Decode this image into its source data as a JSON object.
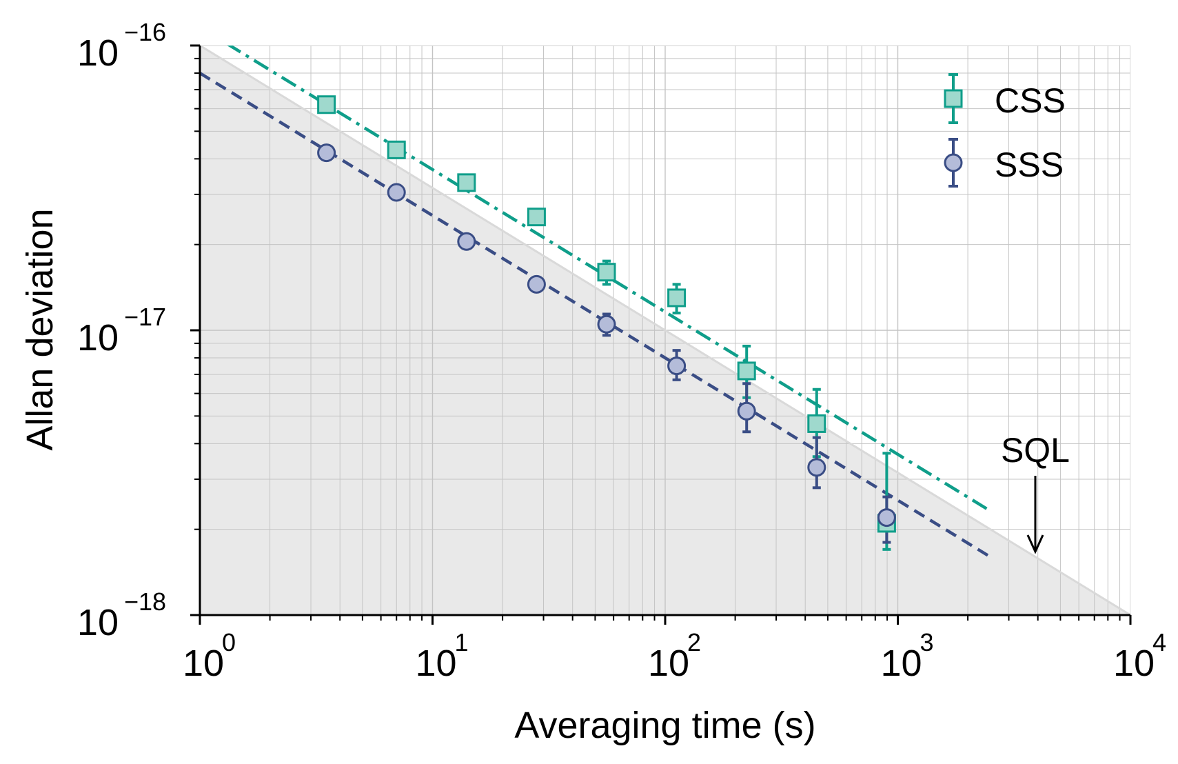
{
  "colors": {
    "css_line": "#0f9e8a",
    "css_fill": "#9fd9cd",
    "sss_line": "#3a4d85",
    "sss_fill": "#b4bcd9",
    "sql_region": "#e9e9e9",
    "sql_line": "#d9d9d9",
    "grid": "#c4c4c4"
  },
  "chart_data": {
    "type": "scatter",
    "xscale": "log",
    "yscale": "log",
    "xlabel": "Averaging time (s)",
    "ylabel": "Allan deviation",
    "xlim": [
      1,
      10000
    ],
    "ylim": [
      1e-18,
      1e-16
    ],
    "grid": "major and minor",
    "legend_position": "top-right",
    "x_ticks": [
      {
        "value": 1,
        "base": "10",
        "exp": "0"
      },
      {
        "value": 10,
        "base": "10",
        "exp": "1"
      },
      {
        "value": 100,
        "base": "10",
        "exp": "2"
      },
      {
        "value": 1000,
        "base": "10",
        "exp": "3"
      },
      {
        "value": 10000,
        "base": "10",
        "exp": "4"
      }
    ],
    "y_ticks": [
      {
        "value": 1e-16,
        "base": "10",
        "exp": "−16"
      },
      {
        "value": 1e-17,
        "base": "10",
        "exp": "−17"
      },
      {
        "value": 1e-18,
        "base": "10",
        "exp": "−18"
      }
    ],
    "series": [
      {
        "name": "CSS",
        "marker": "square",
        "x": [
          3.5,
          7,
          14,
          28,
          56,
          112,
          224,
          448,
          896
        ],
        "y": [
          6.2e-17,
          4.3e-17,
          3.3e-17,
          2.5e-17,
          1.6e-17,
          1.3e-17,
          7.2e-18,
          4.7e-18,
          2.1e-18
        ],
        "y_low": [
          5.9e-17,
          4.1e-17,
          3.1e-17,
          2.4e-17,
          1.45e-17,
          1.15e-17,
          5.8e-18,
          3.6e-18,
          1.7e-18
        ],
        "y_high": [
          6.5e-17,
          4.5e-17,
          3.5e-17,
          2.6e-17,
          1.75e-17,
          1.45e-17,
          8.8e-18,
          6.2e-18,
          3.7e-18
        ],
        "fit": {
          "style": "dash-dot",
          "x_start": 1.3,
          "x_end": 2500,
          "amplitude": 1.16e-16,
          "slope": -0.5
        }
      },
      {
        "name": "SSS",
        "marker": "circle",
        "x": [
          3.5,
          7,
          14,
          28,
          56,
          112,
          224,
          448,
          896
        ],
        "y": [
          4.2e-17,
          3.05e-17,
          2.05e-17,
          1.45e-17,
          1.05e-17,
          7.5e-18,
          5.2e-18,
          3.3e-18,
          2.2e-18
        ],
        "y_low": [
          4e-17,
          2.9e-17,
          1.95e-17,
          1.37e-17,
          9.6e-18,
          6.7e-18,
          4.4e-18,
          2.8e-18,
          1.8e-18
        ],
        "y_high": [
          4.4e-17,
          3.2e-17,
          2.15e-17,
          1.53e-17,
          1.14e-17,
          8.5e-18,
          6.5e-18,
          4.2e-18,
          2.6e-18
        ],
        "fit": {
          "style": "dashed",
          "x_start": 1,
          "x_end": 2500,
          "amplitude": 8e-17,
          "slope": -0.5
        }
      }
    ],
    "sql": {
      "label": "SQL",
      "amplitude": 1e-16,
      "slope": -0.5,
      "arrow_x": 3900
    }
  }
}
